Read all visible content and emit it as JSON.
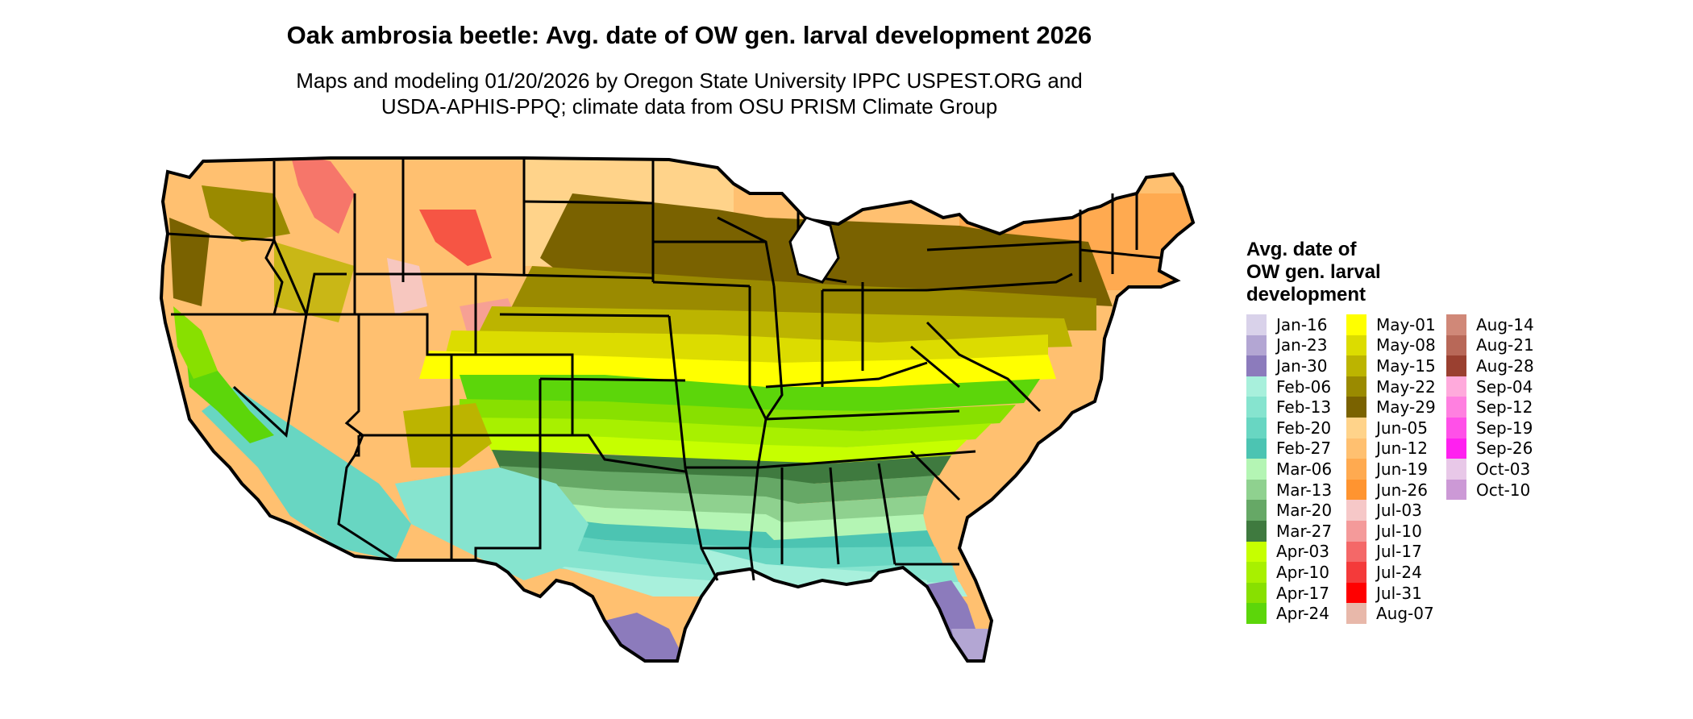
{
  "title": "Oak ambrosia beetle: Avg. date of OW gen. larval development 2026",
  "subtitle_line1": "Maps and modeling 01/20/2026 by Oregon State University IPPC USPEST.ORG and",
  "subtitle_line2": "USDA-APHIS-PPQ; climate data from OSU PRISM Climate Group",
  "legend": {
    "title_line1": "Avg. date of",
    "title_line2": "OW gen. larval",
    "title_line3": "development",
    "columns": [
      [
        {
          "label": "Jan-16",
          "color": "#d9d2ea"
        },
        {
          "label": "Jan-23",
          "color": "#b3a6d3"
        },
        {
          "label": "Jan-30",
          "color": "#8c7bbc"
        },
        {
          "label": "Feb-06",
          "color": "#a8f0dc"
        },
        {
          "label": "Feb-13",
          "color": "#86e4cf"
        },
        {
          "label": "Feb-20",
          "color": "#68d6c2"
        },
        {
          "label": "Feb-27",
          "color": "#4cc4b2"
        },
        {
          "label": "Mar-06",
          "color": "#b4f5b4"
        },
        {
          "label": "Mar-13",
          "color": "#8fd18f"
        },
        {
          "label": "Mar-20",
          "color": "#66a866"
        },
        {
          "label": "Mar-27",
          "color": "#3f7a3f"
        },
        {
          "label": "Apr-03",
          "color": "#c6ff00"
        },
        {
          "label": "Apr-10",
          "color": "#a8f000"
        },
        {
          "label": "Apr-17",
          "color": "#88e000"
        },
        {
          "label": "Apr-24",
          "color": "#5cd60a"
        }
      ],
      [
        {
          "label": "May-01",
          "color": "#ffff00"
        },
        {
          "label": "May-08",
          "color": "#dcdc00"
        },
        {
          "label": "May-15",
          "color": "#bcb400"
        },
        {
          "label": "May-22",
          "color": "#9a8a00"
        },
        {
          "label": "May-29",
          "color": "#7a6200"
        },
        {
          "label": "Jun-05",
          "color": "#ffd38a"
        },
        {
          "label": "Jun-12",
          "color": "#ffc070"
        },
        {
          "label": "Jun-19",
          "color": "#ffaa50"
        },
        {
          "label": "Jun-26",
          "color": "#ff9430"
        },
        {
          "label": "Jul-03",
          "color": "#f6c8c8"
        },
        {
          "label": "Jul-10",
          "color": "#f49a9a"
        },
        {
          "label": "Jul-17",
          "color": "#f46868"
        },
        {
          "label": "Jul-24",
          "color": "#f43a3a"
        },
        {
          "label": "Jul-31",
          "color": "#ff0000"
        },
        {
          "label": "Aug-07",
          "color": "#e8b8aa"
        }
      ],
      [
        {
          "label": "Aug-14",
          "color": "#d08878"
        },
        {
          "label": "Aug-21",
          "color": "#b86858"
        },
        {
          "label": "Aug-28",
          "color": "#9a4030"
        },
        {
          "label": "Sep-04",
          "color": "#ffaadc"
        },
        {
          "label": "Sep-12",
          "color": "#ff80e0"
        },
        {
          "label": "Sep-19",
          "color": "#ff50e8"
        },
        {
          "label": "Sep-26",
          "color": "#ff20f0"
        },
        {
          "label": "Oct-03",
          "color": "#e8c8e8"
        },
        {
          "label": "Oct-10",
          "color": "#cc99d6"
        }
      ]
    ]
  }
}
